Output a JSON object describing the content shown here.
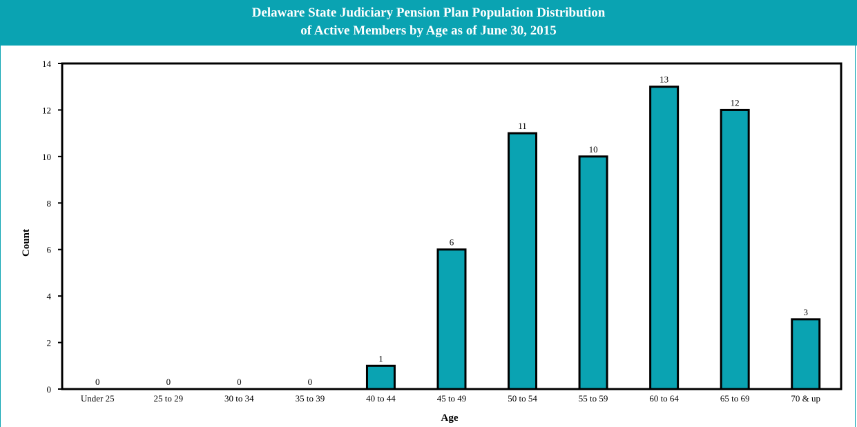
{
  "colors": {
    "bar": "#0aa3b2",
    "title_bg": "#0aa3b2",
    "title_text": "#ffffff",
    "outline": "#000000"
  },
  "chart_data": {
    "type": "bar",
    "title": "Delaware State Judiciary Pension Plan Population Distribution",
    "subtitle": "of Active Members by Age as of June 30, 2015",
    "xlabel": "Age",
    "ylabel": "Count",
    "categories": [
      "Under 25",
      "25 to 29",
      "30 to 34",
      "35 to 39",
      "40 to 44",
      "45 to 49",
      "50 to 54",
      "55 to 59",
      "60 to 64",
      "65 to 69",
      "70 & up"
    ],
    "values": [
      0,
      0,
      0,
      0,
      1,
      6,
      11,
      10,
      13,
      12,
      3
    ],
    "data_labels": [
      "0",
      "0",
      "0",
      "0",
      "1",
      "6",
      "11",
      "10",
      "13",
      "12",
      "3"
    ],
    "ylim": [
      0,
      14
    ],
    "yticks": [
      0,
      2,
      4,
      6,
      8,
      10,
      12,
      14
    ],
    "grid": false,
    "legend": "none"
  }
}
